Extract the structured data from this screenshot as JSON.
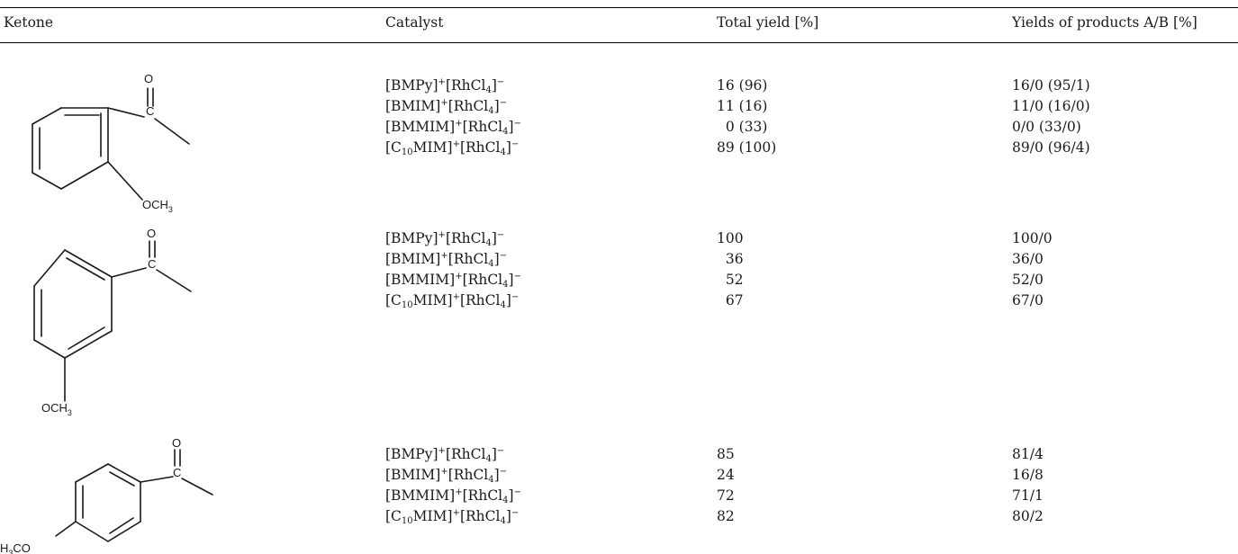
{
  "header": {
    "ketone": "Ketone",
    "catalyst": "Catalyst",
    "total_yield": "Total yield [%]",
    "yields_ab": "Yields of products A/B [%]"
  },
  "structure_labels": {
    "o": "O",
    "c": "C",
    "och3": "OCH",
    "h3co": "H",
    "co": "CO",
    "sub3": "3"
  },
  "catalyst_parts": {
    "bmpy": "[BMPy]",
    "bmim": "[BMIM]",
    "bmmim": "[BMMIM]",
    "c10mim_open": "[C",
    "c10mim_sub": "10",
    "c10mim_close": "MIM]",
    "cation_charge": "+",
    "anion_open": "[RhCl",
    "anion_sub": "4",
    "anion_close": "]",
    "anion_charge": "−"
  },
  "groups": [
    {
      "ketone": "2-methoxyacetophenone",
      "rows": [
        {
          "total": "16 (96)",
          "ab": "16/0 (95/1)"
        },
        {
          "total": "11 (16)",
          "ab": "11/0 (16/0)"
        },
        {
          "total": "  0 (33)",
          "ab": "0/0 (33/0)"
        },
        {
          "total": "89 (100)",
          "ab": "89/0 (96/4)"
        }
      ]
    },
    {
      "ketone": "3-methoxyacetophenone",
      "rows": [
        {
          "total": "100",
          "ab": "100/0"
        },
        {
          "total": "  36",
          "ab": "36/0"
        },
        {
          "total": "  52",
          "ab": "52/0"
        },
        {
          "total": "  67",
          "ab": "67/0"
        }
      ]
    },
    {
      "ketone": "4-methoxyacetophenone",
      "rows": [
        {
          "total": "85",
          "ab": "81/4"
        },
        {
          "total": "24",
          "ab": "16/8"
        },
        {
          "total": "72",
          "ab": "71/1"
        },
        {
          "total": "82",
          "ab": "80/2"
        }
      ]
    }
  ]
}
